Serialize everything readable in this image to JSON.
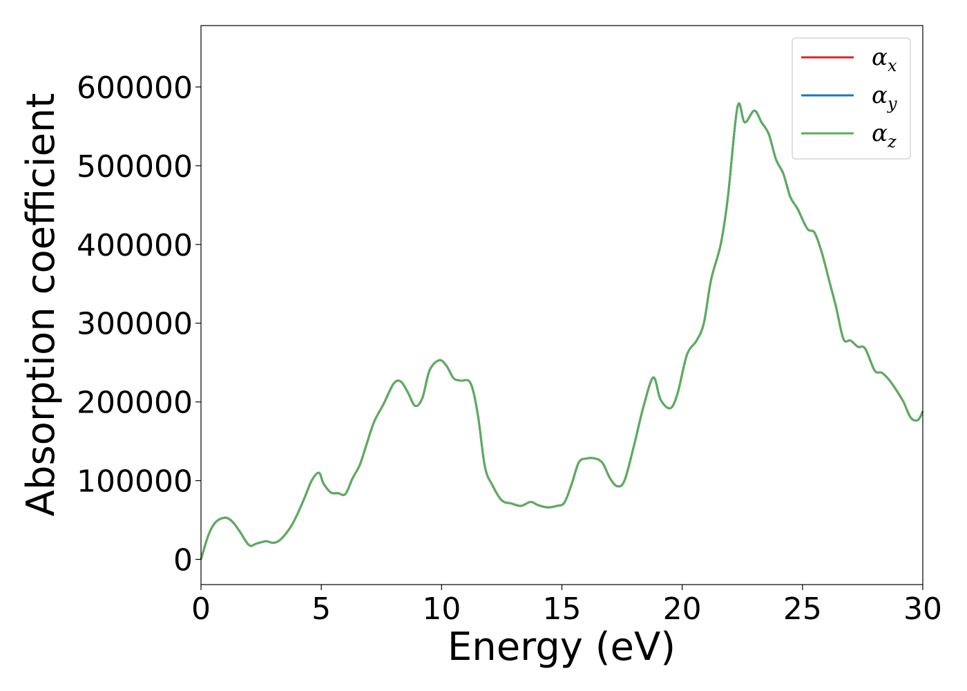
{
  "chart_data": {
    "type": "line",
    "xlabel": "Energy (eV)",
    "ylabel": "Absorption coefficient",
    "xlim": [
      0,
      30
    ],
    "ylim": [
      -32000,
      678000
    ],
    "xticks": [
      0,
      5,
      10,
      15,
      20,
      25,
      30
    ],
    "yticks": [
      0,
      100000,
      200000,
      300000,
      400000,
      500000,
      600000
    ],
    "grid": false,
    "legend_position": "top-right",
    "legend": [
      {
        "base": "α",
        "sub": "x",
        "color": "#d62728"
      },
      {
        "base": "α",
        "sub": "y",
        "color": "#1f77b4"
      },
      {
        "base": "α",
        "sub": "z",
        "color": "#5aae5a"
      }
    ],
    "x": [
      0,
      0.3,
      0.6,
      1.0,
      1.3,
      1.6,
      2.0,
      2.3,
      2.7,
      3.0,
      3.3,
      3.7,
      4.0,
      4.3,
      4.6,
      4.9,
      5.1,
      5.4,
      5.7,
      6.0,
      6.3,
      6.6,
      6.9,
      7.2,
      7.6,
      8.0,
      8.3,
      8.6,
      8.9,
      9.2,
      9.5,
      9.9,
      10.2,
      10.5,
      10.8,
      11.2,
      11.5,
      11.8,
      12.1,
      12.5,
      12.9,
      13.3,
      13.7,
      14.0,
      14.4,
      14.8,
      15.1,
      15.4,
      15.7,
      16.0,
      16.4,
      16.7,
      17.0,
      17.3,
      17.6,
      18.0,
      18.4,
      18.8,
      19.1,
      19.5,
      19.8,
      20.2,
      20.6,
      20.9,
      21.2,
      21.6,
      21.9,
      22.3,
      22.6,
      23.0,
      23.3,
      23.6,
      23.9,
      24.2,
      24.5,
      24.8,
      25.2,
      25.5,
      25.8,
      26.1,
      26.4,
      26.7,
      27.0,
      27.3,
      27.6,
      28.0,
      28.3,
      28.6,
      28.9,
      29.2,
      29.5,
      29.8,
      30.0
    ],
    "series": [
      {
        "values": [
          0,
          30000,
          47000,
          53000,
          48000,
          36000,
          18000,
          20000,
          23000,
          21000,
          25000,
          40000,
          57000,
          78000,
          100000,
          110000,
          96000,
          85000,
          84000,
          83000,
          103000,
          120000,
          148000,
          175000,
          198000,
          223000,
          226000,
          212000,
          195000,
          205000,
          240000,
          253000,
          246000,
          230000,
          227000,
          224000,
          185000,
          118000,
          95000,
          75000,
          71000,
          68000,
          73000,
          69000,
          66000,
          68000,
          72000,
          95000,
          123000,
          128000,
          128000,
          122000,
          103000,
          93000,
          100000,
          145000,
          195000,
          231000,
          203000,
          192000,
          210000,
          260000,
          278000,
          300000,
          355000,
          400000,
          460000,
          575000,
          555000,
          570000,
          555000,
          540000,
          508000,
          490000,
          460000,
          445000,
          420000,
          415000,
          390000,
          355000,
          320000,
          280000,
          278000,
          270000,
          268000,
          240000,
          237000,
          228000,
          215000,
          200000,
          180000,
          177000,
          188000
        ]
      },
      {
        "values": [
          0,
          30000,
          47000,
          53000,
          48000,
          36000,
          18000,
          20000,
          23000,
          21000,
          25000,
          40000,
          57000,
          78000,
          100000,
          110000,
          96000,
          85000,
          84000,
          83000,
          103000,
          120000,
          148000,
          175000,
          198000,
          223000,
          226000,
          212000,
          195000,
          205000,
          240000,
          253000,
          246000,
          230000,
          227000,
          224000,
          185000,
          118000,
          95000,
          75000,
          71000,
          68000,
          73000,
          69000,
          66000,
          68000,
          72000,
          95000,
          123000,
          128000,
          128000,
          122000,
          103000,
          93000,
          100000,
          145000,
          195000,
          231000,
          203000,
          192000,
          210000,
          260000,
          278000,
          300000,
          355000,
          400000,
          460000,
          575000,
          555000,
          570000,
          555000,
          540000,
          508000,
          490000,
          460000,
          445000,
          420000,
          415000,
          390000,
          355000,
          320000,
          280000,
          278000,
          270000,
          268000,
          240000,
          237000,
          228000,
          215000,
          200000,
          180000,
          177000,
          188000
        ]
      },
      {
        "values": [
          0,
          30000,
          47000,
          53000,
          48000,
          36000,
          18000,
          20000,
          23000,
          21000,
          25000,
          40000,
          57000,
          78000,
          100000,
          110000,
          96000,
          85000,
          84000,
          83000,
          103000,
          120000,
          148000,
          175000,
          198000,
          223000,
          226000,
          212000,
          195000,
          205000,
          240000,
          253000,
          246000,
          230000,
          227000,
          224000,
          185000,
          118000,
          95000,
          75000,
          71000,
          68000,
          73000,
          69000,
          66000,
          68000,
          72000,
          95000,
          123000,
          128000,
          128000,
          122000,
          103000,
          93000,
          100000,
          145000,
          195000,
          231000,
          203000,
          192000,
          210000,
          260000,
          278000,
          300000,
          355000,
          400000,
          460000,
          575000,
          555000,
          570000,
          555000,
          540000,
          508000,
          490000,
          460000,
          445000,
          420000,
          415000,
          390000,
          355000,
          320000,
          280000,
          278000,
          270000,
          268000,
          240000,
          237000,
          228000,
          215000,
          200000,
          180000,
          177000,
          188000
        ]
      }
    ]
  }
}
